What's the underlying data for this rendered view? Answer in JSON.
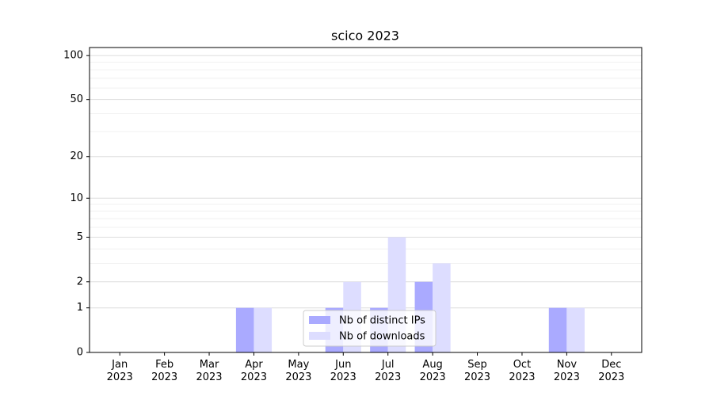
{
  "chart_data": {
    "type": "bar",
    "title": "scico 2023",
    "categories": [
      "Jan\n2023",
      "Feb\n2023",
      "Mar\n2023",
      "Apr\n2023",
      "May\n2023",
      "Jun\n2023",
      "Jul\n2023",
      "Aug\n2023",
      "Sep\n2023",
      "Oct\n2023",
      "Nov\n2023",
      "Dec\n2023"
    ],
    "series": [
      {
        "name": "Nb of distinct IPs",
        "color": "#aaaaff",
        "values": [
          0,
          0,
          0,
          1,
          0,
          1,
          1,
          2,
          0,
          0,
          1,
          0
        ]
      },
      {
        "name": "Nb of downloads",
        "color": "#ddddff",
        "values": [
          0,
          0,
          0,
          1,
          0,
          2,
          5,
          3,
          0,
          0,
          1,
          0
        ]
      }
    ],
    "yscale": "log1p",
    "ylim": [
      0,
      113.5
    ],
    "yticks": [
      0,
      1,
      2,
      5,
      10,
      20,
      50,
      100
    ],
    "yminor": [
      3,
      4,
      6,
      7,
      8,
      9,
      30,
      40,
      60,
      70,
      80,
      90
    ],
    "grid": true,
    "legend": "lower center"
  }
}
